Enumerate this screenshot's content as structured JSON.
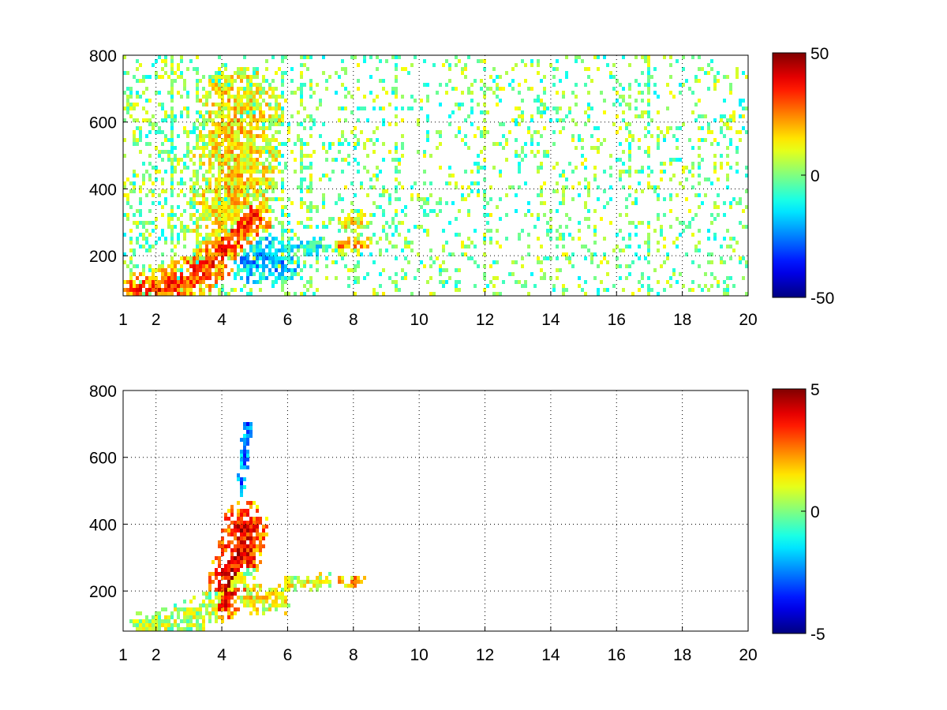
{
  "chart_data": [
    {
      "type": "heatmap",
      "title": "",
      "xlabel": "",
      "ylabel": "",
      "xlim": [
        1,
        20
      ],
      "ylim": [
        80,
        800
      ],
      "x_ticks": [
        1,
        2,
        4,
        6,
        8,
        10,
        12,
        14,
        16,
        18,
        20
      ],
      "y_ticks": [
        200,
        400,
        600,
        800
      ],
      "grid": true,
      "colormap": "jet",
      "colorbar": {
        "range": [
          -50,
          50
        ],
        "ticks": [
          50,
          0,
          -50
        ]
      },
      "features": [
        {
          "name": "main diagonal ridge",
          "points": [
            [
              1.6,
              90
            ],
            [
              2.5,
              110
            ],
            [
              3.2,
              145
            ],
            [
              3.8,
              190
            ],
            [
              4.2,
              235
            ],
            [
              4.6,
              280
            ],
            [
              4.9,
              320
            ]
          ],
          "width": 28,
          "value": 32
        },
        {
          "name": "upper plume",
          "points": [
            [
              4.2,
              320
            ],
            [
              4.4,
              430
            ],
            [
              4.5,
              560
            ],
            [
              4.6,
              640
            ]
          ],
          "width": 55,
          "value": 16
        },
        {
          "name": "negative lobe",
          "points": [
            [
              4.9,
              180
            ],
            [
              5.3,
              200
            ],
            [
              5.7,
              180
            ]
          ],
          "width": 28,
          "value": -22
        },
        {
          "name": "band 6-7",
          "points": [
            [
              6.0,
              220
            ],
            [
              6.5,
              225
            ],
            [
              7.0,
              230
            ]
          ],
          "width": 12,
          "value": -12
        },
        {
          "name": "band 8",
          "points": [
            [
              7.6,
              225
            ],
            [
              8.0,
              230
            ],
            [
              8.4,
              235
            ]
          ],
          "width": 10,
          "value": 22
        },
        {
          "name": "band 8 upper",
          "points": [
            [
              7.8,
              300
            ],
            [
              8.3,
              305
            ]
          ],
          "width": 12,
          "value": 12
        }
      ],
      "background": {
        "value_range": [
          -14,
          14
        ],
        "density": 0.16
      }
    },
    {
      "type": "heatmap",
      "title": "",
      "xlabel": "",
      "ylabel": "",
      "xlim": [
        1,
        20
      ],
      "ylim": [
        80,
        800
      ],
      "x_ticks": [
        1,
        2,
        4,
        6,
        8,
        10,
        12,
        14,
        16,
        18,
        20
      ],
      "y_ticks": [
        200,
        400,
        600,
        800
      ],
      "grid": true,
      "colormap": "jet",
      "colorbar": {
        "range": [
          -5,
          5
        ],
        "ticks": [
          5,
          0,
          -5
        ]
      },
      "features": [
        {
          "name": "main diagonal ridge",
          "points": [
            [
              1.6,
              85
            ],
            [
              2.5,
              100
            ],
            [
              3.2,
              130
            ],
            [
              3.8,
              170
            ],
            [
              4.2,
              210
            ],
            [
              4.6,
              250
            ]
          ],
          "width": 22,
          "value": 0.6
        },
        {
          "name": "core",
          "points": [
            [
              4.0,
              180
            ],
            [
              4.4,
              260
            ],
            [
              4.6,
              330
            ],
            [
              4.7,
              400
            ]
          ],
          "width": 30,
          "value": 4.0
        },
        {
          "name": "lower lobe",
          "points": [
            [
              4.9,
              170
            ],
            [
              5.3,
              180
            ],
            [
              5.7,
              170
            ]
          ],
          "width": 20,
          "value": 1.5
        },
        {
          "name": "band 6-7",
          "points": [
            [
              6.0,
              220
            ],
            [
              6.6,
              225
            ],
            [
              7.2,
              230
            ]
          ],
          "width": 10,
          "value": 1.2
        },
        {
          "name": "band 8",
          "points": [
            [
              7.7,
              228
            ],
            [
              8.2,
              232
            ]
          ],
          "width": 8,
          "value": 2.5
        },
        {
          "name": "upper streak",
          "points": [
            [
              4.6,
              500
            ],
            [
              4.7,
              620
            ],
            [
              4.8,
              700
            ]
          ],
          "width": 6,
          "value": -3.0
        }
      ],
      "background": {
        "value_range": [
          -0.5,
          0.5
        ],
        "density": 0.0
      }
    }
  ]
}
